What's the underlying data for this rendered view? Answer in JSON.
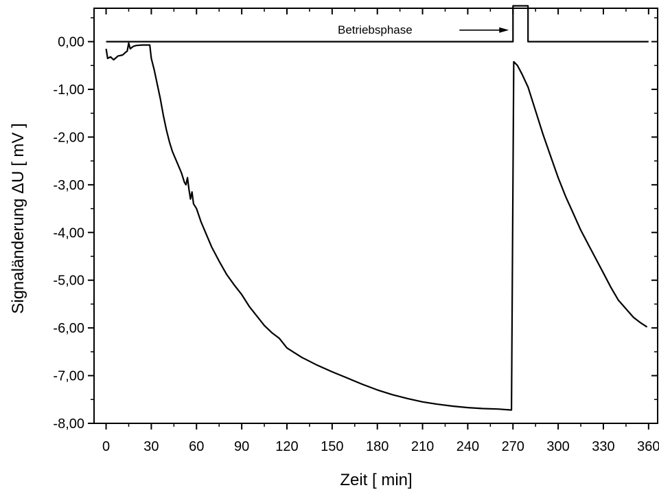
{
  "chart_data": {
    "type": "line",
    "xlabel": "Zeit [ min]",
    "ylabel": "Signaländerung ΔU [ mV ]",
    "xlim": [
      -8,
      366
    ],
    "ylim": [
      -8.0,
      0.7
    ],
    "xticks": [
      0,
      30,
      60,
      90,
      120,
      150,
      180,
      210,
      240,
      270,
      300,
      330,
      360
    ],
    "xtick_labels": [
      "0",
      "30",
      "60",
      "90",
      "120",
      "150",
      "180",
      "210",
      "240",
      "270",
      "300",
      "330",
      "360"
    ],
    "yticks": [
      -8,
      -7,
      -6,
      -5,
      -4,
      -3,
      -2,
      -1,
      0
    ],
    "ytick_labels": [
      "-8,00",
      "-7,00",
      "-6,00",
      "-5,00",
      "-4,00",
      "-3,00",
      "-2,00",
      "-1,00",
      "0,00"
    ],
    "grid": false,
    "annotation": {
      "text": "Betriebsphase",
      "arrow_to": [
        270,
        0.3
      ]
    },
    "series": [
      {
        "name": "",
        "points": [
          [
            0,
            -0.15
          ],
          [
            1,
            -0.35
          ],
          [
            3,
            -0.32
          ],
          [
            5,
            -0.38
          ],
          [
            8,
            -0.3
          ],
          [
            11,
            -0.28
          ],
          [
            13,
            -0.22
          ],
          [
            14,
            -0.2
          ],
          [
            15,
            -0.03
          ],
          [
            16,
            -0.15
          ],
          [
            18,
            -0.1
          ],
          [
            20,
            -0.08
          ],
          [
            24,
            -0.07
          ],
          [
            29,
            -0.07
          ],
          [
            30,
            -0.35
          ],
          [
            32,
            -0.6
          ],
          [
            34,
            -0.9
          ],
          [
            36,
            -1.2
          ],
          [
            38,
            -1.55
          ],
          [
            40,
            -1.85
          ],
          [
            42,
            -2.1
          ],
          [
            44,
            -2.3
          ],
          [
            46,
            -2.45
          ],
          [
            48,
            -2.6
          ],
          [
            50,
            -2.75
          ],
          [
            52,
            -2.95
          ],
          [
            53,
            -3.0
          ],
          [
            54,
            -2.85
          ],
          [
            55,
            -3.1
          ],
          [
            56,
            -3.3
          ],
          [
            57,
            -3.15
          ],
          [
            58,
            -3.4
          ],
          [
            60,
            -3.5
          ],
          [
            63,
            -3.78
          ],
          [
            66,
            -4.0
          ],
          [
            70,
            -4.3
          ],
          [
            75,
            -4.6
          ],
          [
            80,
            -4.88
          ],
          [
            85,
            -5.1
          ],
          [
            90,
            -5.3
          ],
          [
            95,
            -5.55
          ],
          [
            100,
            -5.75
          ],
          [
            105,
            -5.95
          ],
          [
            110,
            -6.1
          ],
          [
            115,
            -6.22
          ],
          [
            120,
            -6.42
          ],
          [
            125,
            -6.52
          ],
          [
            130,
            -6.62
          ],
          [
            135,
            -6.7
          ],
          [
            140,
            -6.78
          ],
          [
            150,
            -6.92
          ],
          [
            160,
            -7.05
          ],
          [
            170,
            -7.18
          ],
          [
            180,
            -7.3
          ],
          [
            190,
            -7.4
          ],
          [
            200,
            -7.48
          ],
          [
            210,
            -7.55
          ],
          [
            220,
            -7.6
          ],
          [
            230,
            -7.64
          ],
          [
            240,
            -7.67
          ],
          [
            250,
            -7.69
          ],
          [
            260,
            -7.7
          ],
          [
            269,
            -7.72
          ],
          [
            270.5,
            -0.42
          ],
          [
            273,
            -0.5
          ],
          [
            276,
            -0.68
          ],
          [
            280,
            -0.95
          ],
          [
            285,
            -1.45
          ],
          [
            290,
            -1.95
          ],
          [
            295,
            -2.4
          ],
          [
            300,
            -2.85
          ],
          [
            305,
            -3.25
          ],
          [
            310,
            -3.6
          ],
          [
            315,
            -3.95
          ],
          [
            320,
            -4.25
          ],
          [
            325,
            -4.55
          ],
          [
            330,
            -4.85
          ],
          [
            335,
            -5.15
          ],
          [
            340,
            -5.42
          ],
          [
            345,
            -5.6
          ],
          [
            350,
            -5.78
          ],
          [
            355,
            -5.9
          ],
          [
            359,
            -5.98
          ]
        ]
      },
      {
        "name": "",
        "points": [
          [
            0,
            0
          ],
          [
            270,
            0
          ],
          [
            270,
            0.75
          ],
          [
            280,
            0.75
          ],
          [
            280,
            0
          ],
          [
            360,
            0
          ]
        ]
      }
    ]
  }
}
